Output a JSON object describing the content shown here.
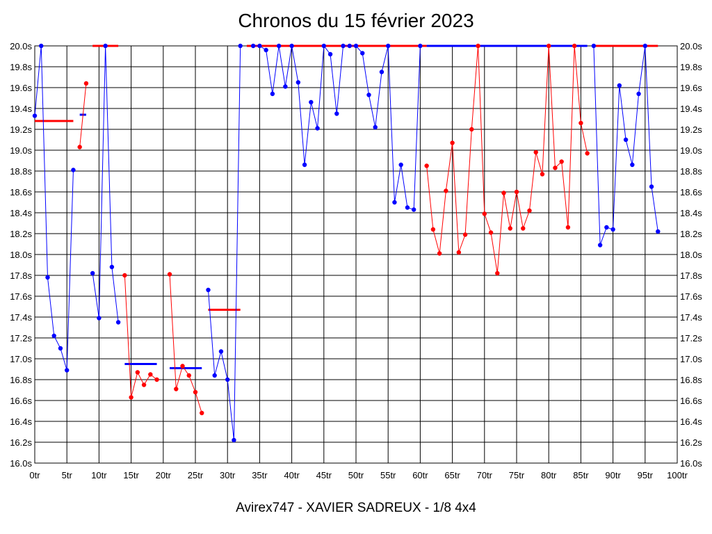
{
  "chart_data": {
    "type": "line",
    "title": "Chronos du 15 février 2023",
    "footer": "Avirex747 - XAVIER SADREUX - 1/8 4x4",
    "xlabel": "",
    "ylabel": "",
    "xlim": [
      0,
      100
    ],
    "ylim": [
      16.0,
      20.0
    ],
    "x_ticks": [
      "0tr",
      "5tr",
      "10tr",
      "15tr",
      "20tr",
      "25tr",
      "30tr",
      "35tr",
      "40tr",
      "45tr",
      "50tr",
      "55tr",
      "60tr",
      "65tr",
      "70tr",
      "75tr",
      "80tr",
      "85tr",
      "90tr",
      "95tr",
      "100tr"
    ],
    "y_ticks": [
      "16.0s",
      "16.2s",
      "16.4s",
      "16.6s",
      "16.8s",
      "17.0s",
      "17.2s",
      "17.4s",
      "17.6s",
      "17.8s",
      "18.0s",
      "18.2s",
      "18.4s",
      "18.6s",
      "18.8s",
      "19.0s",
      "19.2s",
      "19.4s",
      "19.6s",
      "19.8s",
      "20.0s"
    ],
    "grid": true,
    "colors": {
      "blue": "#0000ff",
      "red": "#ff0000",
      "grid": "#000000"
    },
    "series": [
      {
        "color": "#0000ff",
        "points": [
          [
            0,
            19.33
          ],
          [
            1,
            20.0
          ],
          [
            2,
            17.78
          ],
          [
            3,
            17.22
          ],
          [
            4,
            17.1
          ],
          [
            5,
            16.89
          ],
          [
            6,
            18.81
          ]
        ]
      },
      {
        "color": "#ff0000",
        "points": [
          [
            7,
            19.03
          ],
          [
            8,
            19.64
          ]
        ]
      },
      {
        "color": "#0000ff",
        "points": [
          [
            9,
            17.82
          ],
          [
            10,
            17.39
          ],
          [
            11,
            20.0
          ],
          [
            12,
            17.88
          ],
          [
            13,
            17.35
          ]
        ]
      },
      {
        "color": "#ff0000",
        "points": [
          [
            14,
            17.8
          ],
          [
            15,
            16.63
          ],
          [
            16,
            16.87
          ],
          [
            17,
            16.75
          ],
          [
            18,
            16.85
          ],
          [
            19,
            16.8
          ]
        ]
      },
      {
        "color": "#ff0000",
        "points": [
          [
            21,
            17.81
          ],
          [
            22,
            16.71
          ],
          [
            23,
            16.93
          ],
          [
            24,
            16.84
          ],
          [
            25,
            16.68
          ],
          [
            26,
            16.48
          ]
        ]
      },
      {
        "color": "#0000ff",
        "points": [
          [
            27,
            17.66
          ],
          [
            28,
            16.84
          ],
          [
            29,
            17.07
          ],
          [
            30,
            16.8
          ],
          [
            31,
            16.22
          ],
          [
            32,
            20.0
          ]
        ]
      },
      {
        "color": "#0000ff",
        "points": [
          [
            34,
            20.0
          ],
          [
            35,
            20.0
          ],
          [
            36,
            19.96
          ],
          [
            37,
            19.54
          ],
          [
            38,
            20.0
          ],
          [
            39,
            19.61
          ],
          [
            40,
            20.0
          ],
          [
            41,
            19.65
          ],
          [
            42,
            18.86
          ],
          [
            43,
            19.46
          ],
          [
            44,
            19.21
          ],
          [
            45,
            20.0
          ],
          [
            46,
            19.92
          ],
          [
            47,
            19.35
          ],
          [
            48,
            20.0
          ],
          [
            49,
            20.0
          ],
          [
            50,
            20.0
          ],
          [
            51,
            19.93
          ],
          [
            52,
            19.53
          ],
          [
            53,
            19.22
          ],
          [
            54,
            19.75
          ],
          [
            55,
            20.0
          ],
          [
            56,
            18.5
          ],
          [
            57,
            18.86
          ],
          [
            58,
            18.45
          ],
          [
            59,
            18.43
          ],
          [
            60,
            20.0
          ]
        ]
      },
      {
        "color": "#ff0000",
        "points": [
          [
            61,
            18.85
          ],
          [
            62,
            18.24
          ],
          [
            63,
            18.01
          ],
          [
            64,
            18.61
          ],
          [
            65,
            19.07
          ],
          [
            66,
            18.02
          ],
          [
            67,
            18.19
          ],
          [
            68,
            19.2
          ],
          [
            69,
            20.0
          ],
          [
            70,
            18.39
          ],
          [
            71,
            18.21
          ],
          [
            72,
            17.82
          ],
          [
            73,
            18.59
          ],
          [
            74,
            18.25
          ],
          [
            75,
            18.6
          ],
          [
            76,
            18.25
          ],
          [
            77,
            18.42
          ],
          [
            78,
            18.98
          ],
          [
            79,
            18.77
          ],
          [
            80,
            20.0
          ],
          [
            81,
            18.83
          ],
          [
            82,
            18.89
          ],
          [
            83,
            18.26
          ],
          [
            84,
            20.0
          ],
          [
            85,
            19.26
          ],
          [
            86,
            18.97
          ]
        ]
      },
      {
        "color": "#0000ff",
        "points": [
          [
            87,
            20.0
          ],
          [
            88,
            18.09
          ],
          [
            89,
            18.26
          ],
          [
            90,
            18.24
          ],
          [
            91,
            19.62
          ],
          [
            92,
            19.1
          ],
          [
            93,
            18.86
          ],
          [
            94,
            19.54
          ],
          [
            95,
            20.0
          ],
          [
            96,
            18.65
          ],
          [
            97,
            18.22
          ]
        ]
      }
    ],
    "average_lines": [
      {
        "color": "#ff0000",
        "x": [
          0,
          6
        ],
        "y": 19.28
      },
      {
        "color": "#0000ff",
        "x": [
          7,
          8
        ],
        "y": 19.34
      },
      {
        "color": "#ff0000",
        "x": [
          9,
          13
        ],
        "y": 20.0
      },
      {
        "color": "#0000ff",
        "x": [
          14,
          19
        ],
        "y": 16.95
      },
      {
        "color": "#0000ff",
        "x": [
          21,
          26
        ],
        "y": 16.91
      },
      {
        "color": "#ff0000",
        "x": [
          27,
          32
        ],
        "y": 17.47
      },
      {
        "color": "#ff0000",
        "x": [
          33,
          61
        ],
        "y": 20.0
      },
      {
        "color": "#0000ff",
        "x": [
          61,
          86
        ],
        "y": 20.0
      },
      {
        "color": "#ff0000",
        "x": [
          87,
          97
        ],
        "y": 20.0
      }
    ]
  }
}
